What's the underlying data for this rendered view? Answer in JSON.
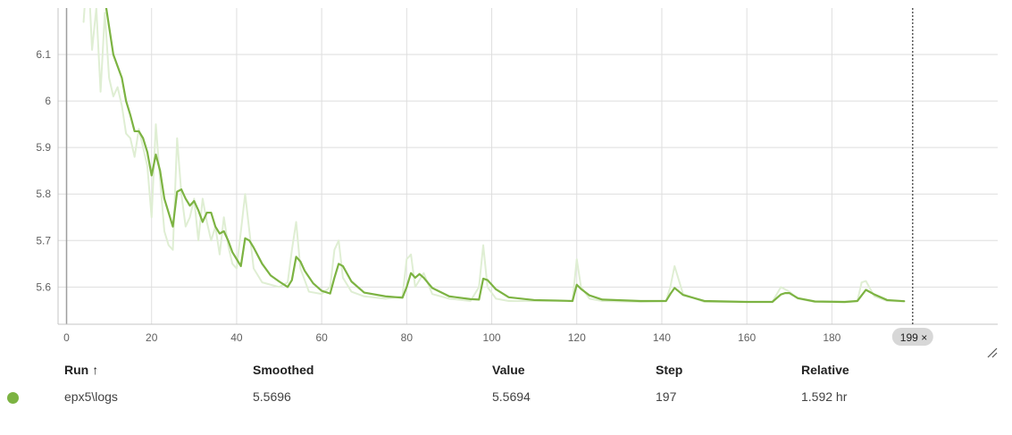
{
  "chart_data": {
    "type": "line",
    "xlim": [
      -2,
      219
    ],
    "ylim": [
      5.52,
      6.2
    ],
    "x_ticks": [
      0,
      20,
      40,
      60,
      80,
      100,
      120,
      140,
      160,
      180
    ],
    "x_faint_ticks": [
      -20
    ],
    "y_ticks": [
      5.6,
      5.7,
      5.8,
      5.9,
      6.0,
      6.1
    ],
    "y_tick_labels": [
      "5.6",
      "5.7",
      "5.8",
      "5.9",
      "6",
      "6.1"
    ],
    "grid": true,
    "hover_step": 199,
    "hover_step_label": "199",
    "series": [
      {
        "name": "epx5\\logs",
        "kind": "raw",
        "color": "#dfeed3",
        "x": [
          4,
          5,
          6,
          7,
          8,
          9,
          10,
          11,
          12,
          13,
          14,
          15,
          16,
          17,
          18,
          19,
          20,
          21,
          22,
          23,
          24,
          25,
          26,
          27,
          28,
          29,
          30,
          31,
          32,
          33,
          34,
          35,
          36,
          37,
          38,
          39,
          40,
          42,
          44,
          46,
          48,
          50,
          52,
          53,
          54,
          55,
          57,
          60,
          62,
          63,
          64,
          65,
          67,
          70,
          75,
          79,
          80,
          81,
          82,
          84,
          86,
          90,
          95,
          97,
          98,
          99,
          101,
          104,
          110,
          115,
          119,
          120,
          121,
          123,
          126,
          135,
          141,
          142,
          143,
          145,
          150,
          160,
          166,
          168,
          170,
          172,
          176,
          183,
          186,
          187,
          188,
          190,
          193,
          197
        ],
        "y": [
          6.17,
          6.3,
          6.11,
          6.2,
          6.02,
          6.19,
          6.05,
          6.01,
          6.03,
          5.99,
          5.93,
          5.92,
          5.88,
          5.94,
          5.9,
          5.86,
          5.75,
          5.95,
          5.83,
          5.72,
          5.69,
          5.68,
          5.92,
          5.8,
          5.73,
          5.75,
          5.79,
          5.7,
          5.79,
          5.74,
          5.7,
          5.73,
          5.67,
          5.75,
          5.69,
          5.65,
          5.64,
          5.8,
          5.64,
          5.61,
          5.605,
          5.6,
          5.61,
          5.68,
          5.74,
          5.64,
          5.59,
          5.585,
          5.6,
          5.68,
          5.7,
          5.62,
          5.59,
          5.58,
          5.575,
          5.58,
          5.66,
          5.67,
          5.6,
          5.63,
          5.585,
          5.575,
          5.57,
          5.6,
          5.69,
          5.6,
          5.575,
          5.57,
          5.57,
          5.57,
          5.57,
          5.66,
          5.6,
          5.575,
          5.57,
          5.568,
          5.57,
          5.6,
          5.645,
          5.585,
          5.568,
          5.568,
          5.568,
          5.6,
          5.59,
          5.575,
          5.568,
          5.567,
          5.57,
          5.61,
          5.613,
          5.58,
          5.57,
          5.569
        ]
      },
      {
        "name": "epx5\\logs",
        "kind": "smoothed",
        "color": "#7cb342",
        "x": [
          9,
          10,
          11,
          12,
          13,
          14,
          15,
          16,
          17,
          18,
          19,
          20,
          21,
          22,
          23,
          24,
          25,
          26,
          27,
          28,
          29,
          30,
          31,
          32,
          33,
          34,
          35,
          36,
          37,
          38,
          39,
          40,
          41,
          42,
          43,
          44,
          46,
          48,
          50,
          52,
          53,
          54,
          55,
          56,
          58,
          60,
          62,
          63,
          64,
          65,
          67,
          70,
          75,
          79,
          80,
          81,
          82,
          83,
          84,
          86,
          90,
          95,
          97,
          98,
          99,
          101,
          104,
          110,
          115,
          119,
          120,
          121,
          123,
          126,
          135,
          141,
          142,
          143,
          145,
          150,
          160,
          166,
          168,
          169,
          170,
          172,
          176,
          183,
          186,
          187,
          188,
          190,
          193,
          197
        ],
        "y": [
          6.22,
          6.16,
          6.1,
          6.075,
          6.05,
          6.0,
          5.97,
          5.935,
          5.935,
          5.92,
          5.89,
          5.84,
          5.885,
          5.85,
          5.79,
          5.76,
          5.73,
          5.805,
          5.81,
          5.79,
          5.775,
          5.785,
          5.765,
          5.74,
          5.76,
          5.76,
          5.73,
          5.715,
          5.72,
          5.7,
          5.675,
          5.66,
          5.645,
          5.705,
          5.7,
          5.685,
          5.65,
          5.625,
          5.612,
          5.6,
          5.615,
          5.665,
          5.655,
          5.635,
          5.608,
          5.592,
          5.586,
          5.62,
          5.65,
          5.645,
          5.612,
          5.588,
          5.58,
          5.577,
          5.6,
          5.63,
          5.62,
          5.628,
          5.62,
          5.598,
          5.58,
          5.574,
          5.573,
          5.618,
          5.615,
          5.595,
          5.578,
          5.572,
          5.571,
          5.57,
          5.605,
          5.596,
          5.582,
          5.573,
          5.57,
          5.57,
          5.585,
          5.598,
          5.583,
          5.57,
          5.568,
          5.568,
          5.584,
          5.587,
          5.587,
          5.576,
          5.569,
          5.568,
          5.57,
          5.582,
          5.594,
          5.584,
          5.572,
          5.5696
        ]
      }
    ]
  },
  "table": {
    "headers": {
      "run": "Run",
      "run_sort_icon": "↑",
      "smoothed": "Smoothed",
      "value": "Value",
      "step": "Step",
      "relative": "Relative"
    },
    "rows": [
      {
        "color": "#7cb342",
        "run": "epx5\\logs",
        "smoothed": "5.5696",
        "value": "5.5694",
        "step": "197",
        "relative": "1.592 hr"
      }
    ]
  },
  "icons": {
    "hover_close": "×",
    "resize": "resize-handle-icon"
  }
}
